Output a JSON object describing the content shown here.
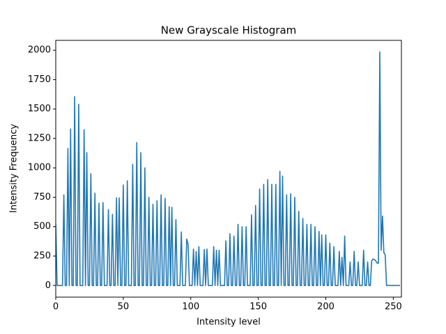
{
  "chart_data": {
    "type": "line",
    "title": "New Grayscale Histogram",
    "xlabel": "Intensity level",
    "ylabel": "Intensity Frequency",
    "color": "#1f77b4",
    "xlim": [
      0,
      256
    ],
    "xticks": [
      0,
      50,
      100,
      150,
      200,
      250
    ],
    "ylim": [
      -99,
      2084
    ],
    "yticks": [
      0,
      250,
      500,
      750,
      1000,
      1250,
      1500,
      1750,
      2000
    ],
    "x": [
      0,
      1,
      2,
      3,
      4,
      5,
      6,
      7,
      8,
      9,
      10,
      11,
      12,
      13,
      14,
      15,
      16,
      17,
      18,
      19,
      20,
      21,
      22,
      23,
      24,
      25,
      26,
      27,
      28,
      29,
      30,
      31,
      32,
      33,
      34,
      35,
      36,
      37,
      38,
      39,
      40,
      41,
      42,
      43,
      44,
      45,
      46,
      47,
      48,
      49,
      50,
      51,
      52,
      53,
      54,
      55,
      56,
      57,
      58,
      59,
      60,
      61,
      62,
      63,
      64,
      65,
      66,
      67,
      68,
      69,
      70,
      71,
      72,
      73,
      74,
      75,
      76,
      77,
      78,
      79,
      80,
      81,
      82,
      83,
      84,
      85,
      86,
      87,
      88,
      89,
      90,
      91,
      92,
      93,
      94,
      95,
      96,
      97,
      98,
      99,
      100,
      101,
      102,
      103,
      104,
      105,
      106,
      107,
      108,
      109,
      110,
      111,
      112,
      113,
      114,
      115,
      116,
      117,
      118,
      119,
      120,
      121,
      122,
      123,
      124,
      125,
      126,
      127,
      128,
      129,
      130,
      131,
      132,
      133,
      134,
      135,
      136,
      137,
      138,
      139,
      140,
      141,
      142,
      143,
      144,
      145,
      146,
      147,
      148,
      149,
      150,
      151,
      152,
      153,
      154,
      155,
      156,
      157,
      158,
      159,
      160,
      161,
      162,
      163,
      164,
      165,
      166,
      167,
      168,
      169,
      170,
      171,
      172,
      173,
      174,
      175,
      176,
      177,
      178,
      179,
      180,
      181,
      182,
      183,
      184,
      185,
      186,
      187,
      188,
      189,
      190,
      191,
      192,
      193,
      194,
      195,
      196,
      197,
      198,
      199,
      200,
      201,
      202,
      203,
      204,
      205,
      206,
      207,
      208,
      209,
      210,
      211,
      212,
      213,
      214,
      215,
      216,
      217,
      218,
      219,
      220,
      221,
      222,
      223,
      224,
      225,
      226,
      227,
      228,
      229,
      230,
      231,
      232,
      233,
      234,
      235,
      236,
      237,
      238,
      239,
      240,
      241,
      242,
      243,
      244,
      245,
      246,
      247,
      248,
      249,
      250,
      251,
      252,
      253,
      254,
      255
    ],
    "values": [
      520,
      0,
      0,
      0,
      0,
      0,
      770,
      0,
      0,
      1165,
      0,
      1330,
      0,
      0,
      1605,
      0,
      0,
      1540,
      0,
      0,
      0,
      1325,
      0,
      1130,
      0,
      0,
      950,
      0,
      0,
      785,
      0,
      0,
      700,
      0,
      0,
      705,
      0,
      0,
      0,
      645,
      0,
      0,
      605,
      0,
      0,
      745,
      0,
      745,
      0,
      0,
      855,
      0,
      0,
      890,
      0,
      0,
      0,
      1030,
      0,
      0,
      1215,
      0,
      0,
      1130,
      0,
      0,
      1000,
      0,
      0,
      750,
      0,
      0,
      690,
      0,
      0,
      720,
      0,
      0,
      770,
      0,
      0,
      740,
      0,
      0,
      670,
      0,
      665,
      0,
      0,
      560,
      0,
      0,
      0,
      455,
      0,
      0,
      0,
      395,
      350,
      0,
      0,
      0,
      310,
      0,
      290,
      0,
      330,
      0,
      0,
      0,
      305,
      0,
      310,
      0,
      0,
      0,
      0,
      330,
      0,
      300,
      0,
      300,
      0,
      0,
      0,
      0,
      380,
      0,
      0,
      440,
      0,
      0,
      420,
      0,
      0,
      520,
      0,
      0,
      500,
      0,
      0,
      500,
      0,
      0,
      0,
      600,
      0,
      0,
      680,
      0,
      0,
      820,
      0,
      0,
      860,
      0,
      0,
      900,
      0,
      0,
      860,
      0,
      0,
      860,
      0,
      0,
      970,
      0,
      930,
      0,
      0,
      770,
      0,
      0,
      780,
      0,
      0,
      750,
      0,
      0,
      630,
      0,
      0,
      570,
      0,
      0,
      520,
      0,
      0,
      520,
      0,
      0,
      500,
      0,
      0,
      460,
      0,
      430,
      0,
      0,
      430,
      0,
      0,
      360,
      0,
      0,
      330,
      0,
      0,
      0,
      290,
      0,
      240,
      0,
      420,
      0,
      0,
      0,
      200,
      0,
      0,
      290,
      0,
      0,
      200,
      0,
      0,
      0,
      300,
      0,
      0,
      200,
      0,
      0,
      210,
      225,
      220,
      210,
      190,
      190,
      1985,
      300,
      590,
      280,
      260,
      0,
      0,
      0,
      0,
      0,
      0,
      0,
      0,
      0,
      0,
      0
    ]
  }
}
